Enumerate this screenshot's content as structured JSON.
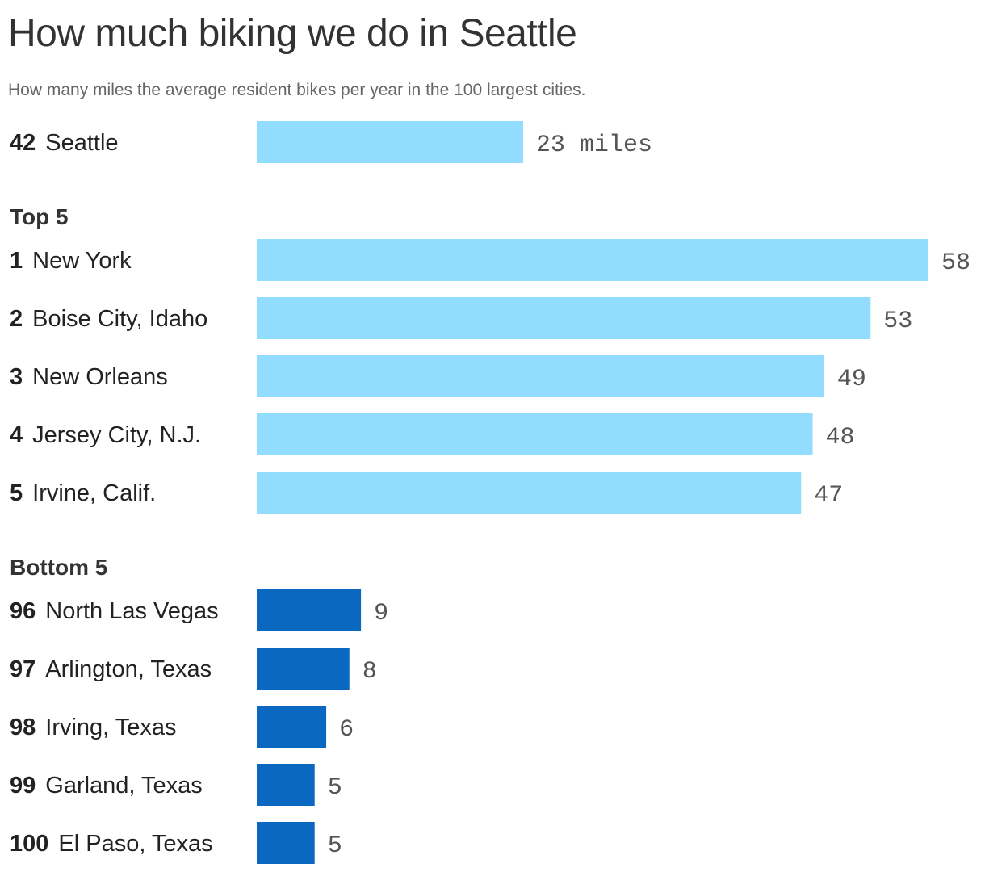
{
  "header": {
    "title": "How much biking we do in Seattle",
    "subtitle": "How many miles the average resident bikes per year in the 100 largest cities."
  },
  "colors": {
    "highlight_bar": "#92dcff",
    "top_bar": "#92dcff",
    "bottom_bar": "#0b68c0",
    "text": "#222222",
    "value_text": "#555555"
  },
  "chart_data": {
    "type": "bar",
    "orientation": "horizontal",
    "title": "How much biking we do in Seattle",
    "subtitle": "How many miles the average resident bikes per year in the 100 largest cities.",
    "xlim": [
      0,
      58
    ],
    "grid": false,
    "groups": [
      {
        "label": "",
        "key": "highlight",
        "rows": [
          {
            "rank": "42",
            "name": "Seattle",
            "value": 23,
            "value_label": "23 miles"
          }
        ]
      },
      {
        "label": "Top 5",
        "key": "top",
        "rows": [
          {
            "rank": "1",
            "name": "New York",
            "value": 58,
            "value_label": "58"
          },
          {
            "rank": "2",
            "name": "Boise City, Idaho",
            "value": 53,
            "value_label": "53"
          },
          {
            "rank": "3",
            "name": "New Orleans",
            "value": 49,
            "value_label": "49"
          },
          {
            "rank": "4",
            "name": "Jersey City, N.J.",
            "value": 48,
            "value_label": "48"
          },
          {
            "rank": "5",
            "name": "Irvine, Calif.",
            "value": 47,
            "value_label": "47"
          }
        ]
      },
      {
        "label": "Bottom 5",
        "key": "bottom",
        "rows": [
          {
            "rank": "96",
            "name": "North Las Vegas",
            "value": 9,
            "value_label": "9"
          },
          {
            "rank": "97",
            "name": "Arlington, Texas",
            "value": 8,
            "value_label": "8"
          },
          {
            "rank": "98",
            "name": "Irving, Texas",
            "value": 6,
            "value_label": "6"
          },
          {
            "rank": "99",
            "name": "Garland, Texas",
            "value": 5,
            "value_label": "5"
          },
          {
            "rank": "100",
            "name": "El Paso, Texas",
            "value": 5,
            "value_label": "5"
          }
        ]
      }
    ]
  }
}
